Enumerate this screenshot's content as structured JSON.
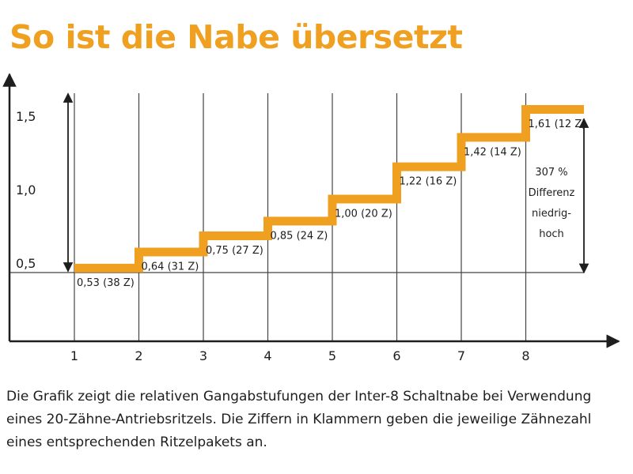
{
  "colors": {
    "accent": "#f0a020",
    "text": "#1e1e1e",
    "grid": "#444444"
  },
  "title": "So ist die Nabe übersetzt",
  "chart_data": {
    "type": "line",
    "step": true,
    "title": "So ist die Nabe übersetzt",
    "xlabel": "",
    "ylabel": "",
    "x": [
      1,
      2,
      3,
      4,
      5,
      6,
      7,
      8
    ],
    "values": [
      0.53,
      0.64,
      0.75,
      0.85,
      1.0,
      1.22,
      1.42,
      1.61
    ],
    "teeth": [
      38,
      31,
      27,
      24,
      20,
      16,
      14,
      12
    ],
    "point_labels": [
      "0,53 (38 Z)",
      "0,64 (31 Z)",
      "0,75 (27 Z)",
      "0,85 (24 Z)",
      "1,00 (20 Z)",
      "1,22 (16 Z)",
      "1,42 (14 Z)",
      "1,61 (12 Z)"
    ],
    "x_ticks": [
      "1",
      "2",
      "3",
      "4",
      "5",
      "6",
      "7",
      "8"
    ],
    "y_ticks": [
      {
        "value": 0.5,
        "label": "0,5"
      },
      {
        "value": 1.0,
        "label": "1,0"
      },
      {
        "value": 1.5,
        "label": "1,5"
      }
    ],
    "ylim": [
      0,
      1.75
    ],
    "grid": true,
    "annotations": {
      "range_arrow_low": {
        "from": 0.53,
        "to": 1.61
      },
      "difference_lines": [
        "307 %",
        "Differenz",
        "niedrig-",
        "hoch"
      ]
    }
  },
  "caption": "Die Grafik zeigt die relativen Gangabstufungen der Inter-8 Schaltnabe bei Verwendung eines 20-Zähne-Antriebsritzels. Die Ziffern in Klammern geben die jeweilige Zähnezahl eines entsprechenden Ritzelpakets an."
}
